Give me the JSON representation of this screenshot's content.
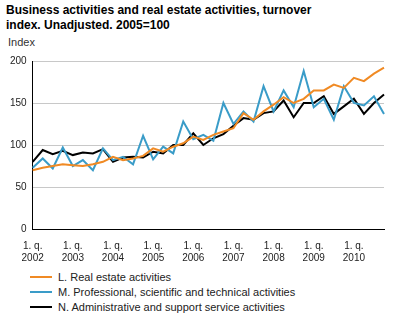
{
  "chart_data": {
    "type": "line",
    "title": "Business activities and real estate activities, turnover index. Unadjusted. 2005=100",
    "ylabel": "Index",
    "categories": [
      "1. q. 2002",
      null,
      null,
      null,
      "1. q. 2003",
      null,
      null,
      null,
      "1. q. 2004",
      null,
      null,
      null,
      "1. q. 2005",
      null,
      null,
      null,
      "1. q. 2006",
      null,
      null,
      null,
      "1. q. 2007",
      null,
      null,
      null,
      "1. q. 2008",
      null,
      null,
      null,
      "1. q. 2009",
      null,
      null,
      null,
      "1. q. 2010",
      null,
      null,
      null
    ],
    "series": [
      {
        "name": "L. Real estate activities",
        "color": "#f08a24",
        "values": [
          70,
          73,
          75,
          77,
          76,
          75,
          77,
          80,
          86,
          82,
          84,
          87,
          96,
          92,
          98,
          102,
          110,
          106,
          112,
          116,
          120,
          138,
          130,
          140,
          148,
          157,
          150,
          155,
          165,
          165,
          172,
          168,
          180,
          176,
          185,
          192
        ]
      },
      {
        "name": "M. Professional, scientific and technical activities",
        "color": "#3a9cc8",
        "values": [
          73,
          84,
          72,
          97,
          75,
          82,
          70,
          96,
          82,
          86,
          77,
          111,
          83,
          98,
          90,
          128,
          107,
          112,
          105,
          150,
          125,
          140,
          128,
          170,
          140,
          165,
          145,
          188,
          145,
          155,
          130,
          170,
          150,
          147,
          158,
          137
        ]
      },
      {
        "name": "N. Administrative and support service activities",
        "color": "#000000",
        "values": [
          80,
          94,
          89,
          93,
          88,
          91,
          90,
          95,
          80,
          85,
          86,
          85,
          92,
          90,
          100,
          100,
          114,
          100,
          108,
          113,
          123,
          132,
          130,
          138,
          140,
          153,
          133,
          150,
          150,
          158,
          137,
          146,
          155,
          137,
          150,
          160
        ]
      }
    ],
    "ylim": [
      0,
      200
    ],
    "yticks": [
      0,
      50,
      100,
      150,
      200
    ],
    "grid": true,
    "legend": "bottom"
  }
}
